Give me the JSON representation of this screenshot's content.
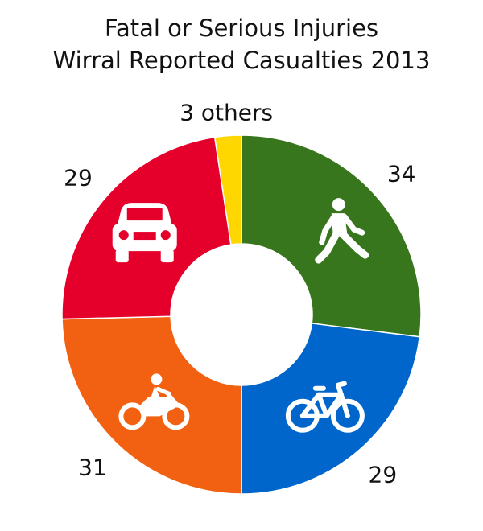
{
  "chart_data": {
    "type": "pie",
    "variant": "donut",
    "title": "Fatal or Serious Injuries",
    "subtitle": "Wirral Reported Casualties 2013",
    "slices": [
      {
        "value": 34,
        "label": "34",
        "color": "#38761d",
        "icon": "pedestrian-icon"
      },
      {
        "value": 29,
        "label": "29",
        "color": "#0066cc",
        "icon": "bicycle-icon"
      },
      {
        "value": 31,
        "label": "31",
        "color": "#f26111",
        "icon": "motorcycle-icon"
      },
      {
        "value": 29,
        "label": "29",
        "color": "#e4002b",
        "icon": "car-icon"
      },
      {
        "value": 3,
        "label": "3 others",
        "color": "#ffd700",
        "icon": ""
      }
    ]
  }
}
